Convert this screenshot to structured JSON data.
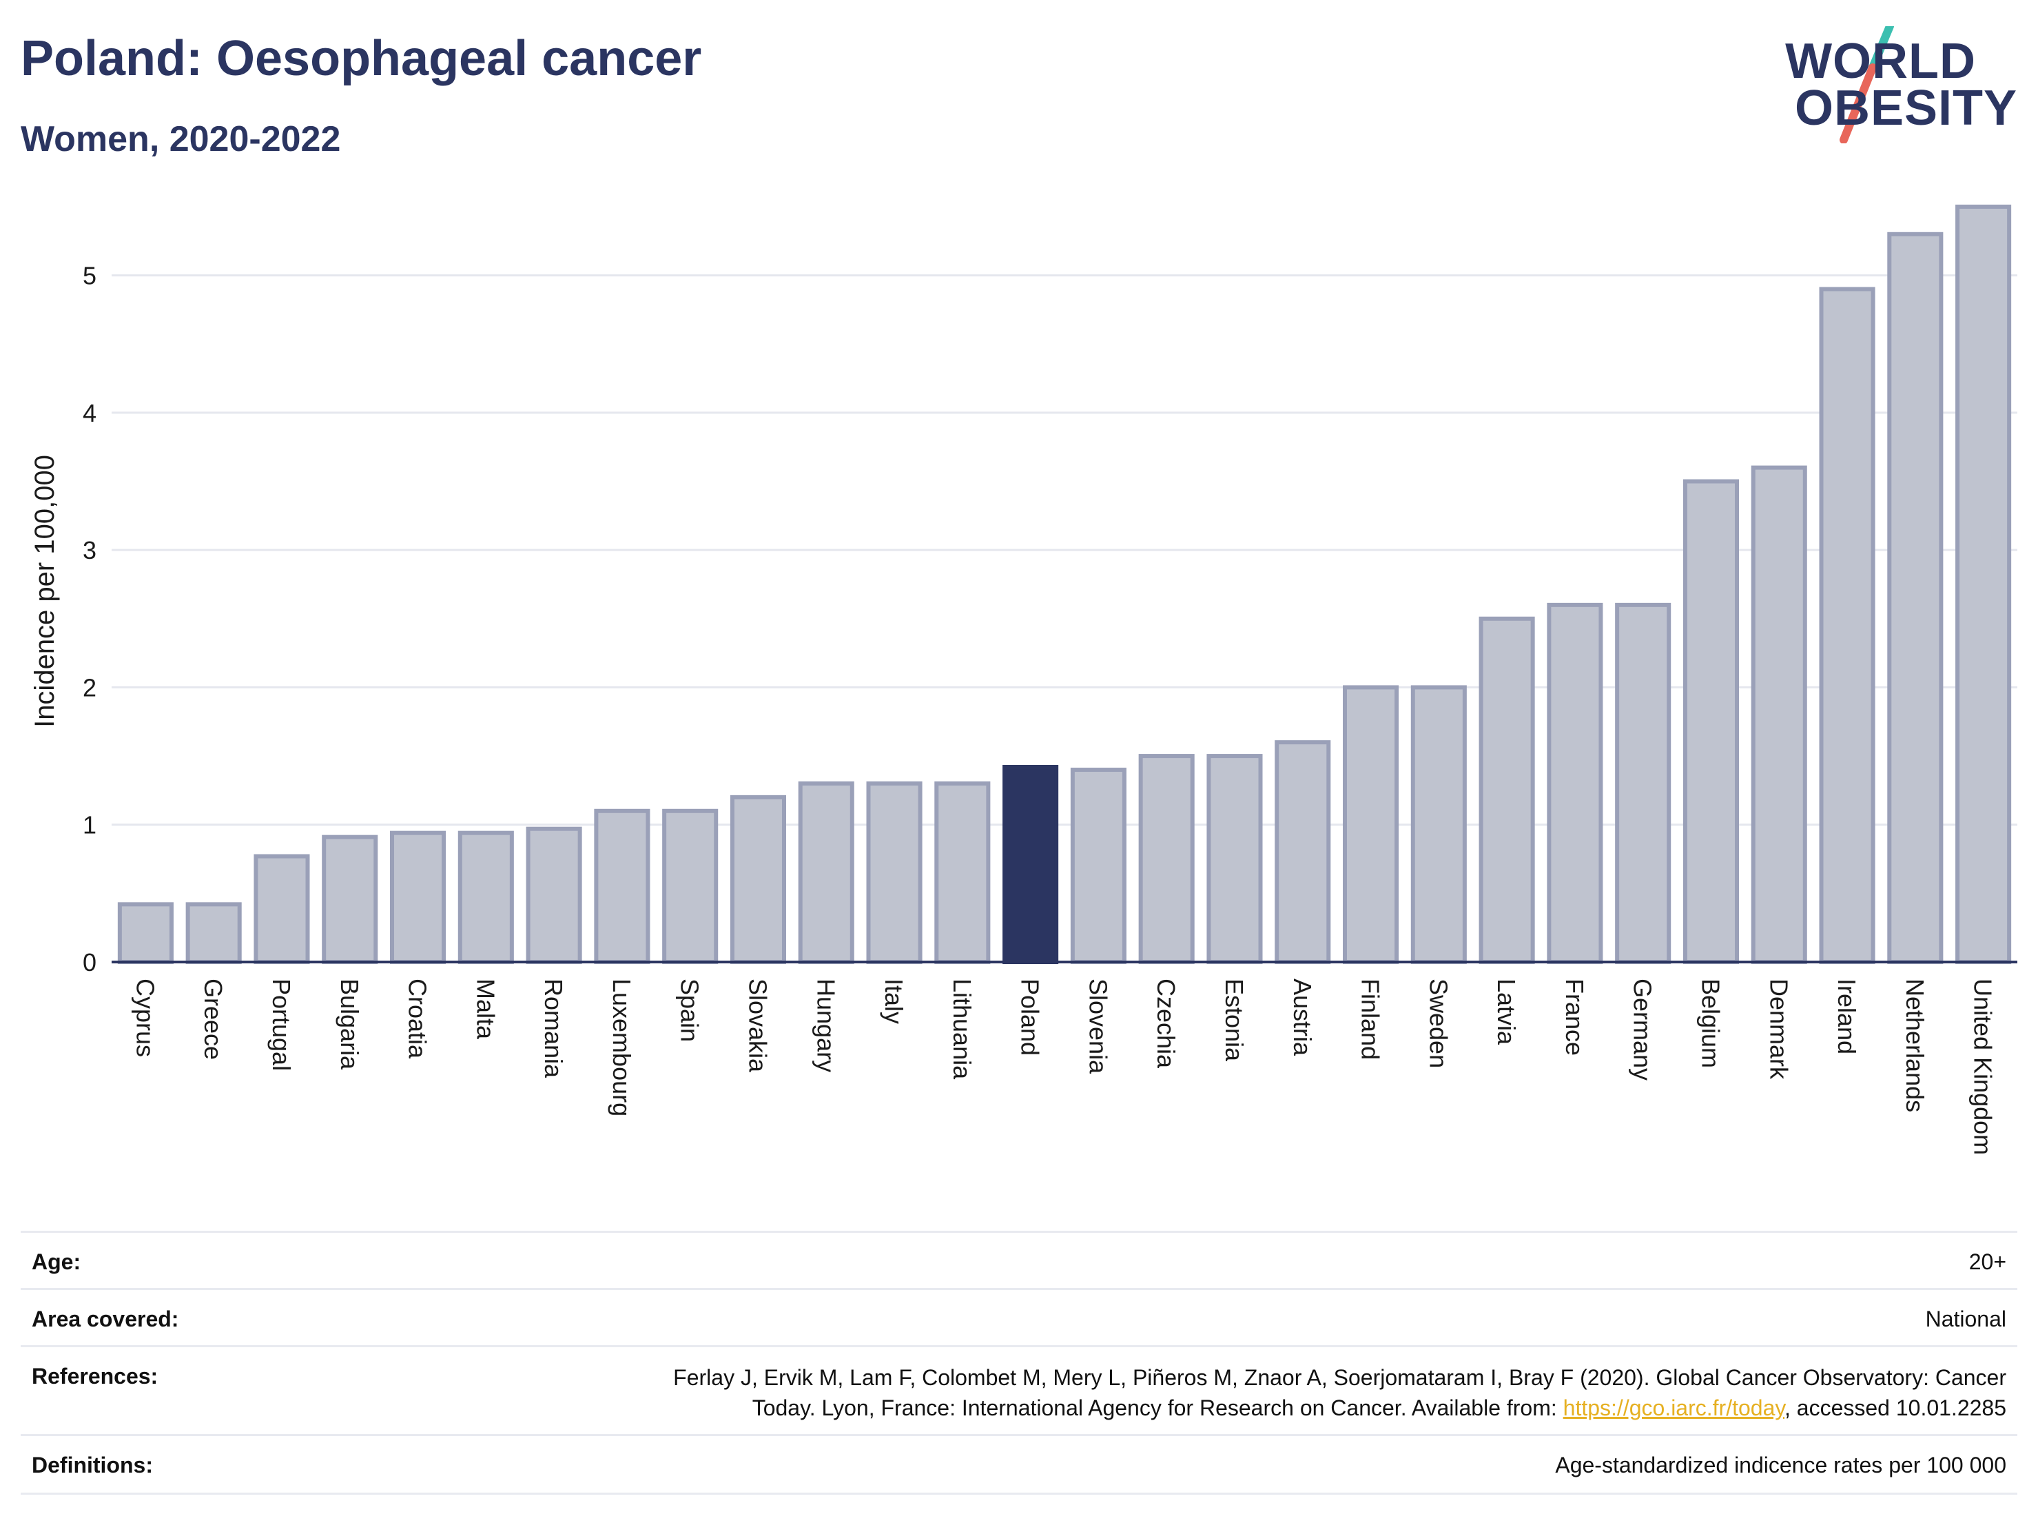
{
  "header": {
    "title": "Poland: Oesophageal cancer",
    "subtitle": "Women, 2020-2022"
  },
  "logo": {
    "line1": "WORLD",
    "line2": "OBESITY",
    "colors": {
      "text": "#2b3561",
      "slash_top": "#3bbfb0",
      "slash_bottom": "#e8665a"
    }
  },
  "chart_data": {
    "type": "bar",
    "ylabel": "Incidence per 100,000",
    "xlabel": "",
    "ylim": [
      0,
      5.6
    ],
    "yticks": [
      0,
      1,
      2,
      3,
      4,
      5
    ],
    "grid": true,
    "highlight": "Poland",
    "colors": {
      "bar": "#bfc3cf",
      "bar_edge": "#9aa0b8",
      "highlight": "#2b3561",
      "grid": "#e5e7ee",
      "axis": "#2b3561"
    },
    "categories": [
      "Cyprus",
      "Greece",
      "Portugal",
      "Bulgaria",
      "Croatia",
      "Malta",
      "Romania",
      "Luxembourg",
      "Spain",
      "Slovakia",
      "Hungary",
      "Italy",
      "Lithuania",
      "Poland",
      "Slovenia",
      "Czechia",
      "Estonia",
      "Austria",
      "Finland",
      "Sweden",
      "Latvia",
      "France",
      "Germany",
      "Belgium",
      "Denmark",
      "Ireland",
      "Netherlands",
      "United Kingdom"
    ],
    "values": [
      0.42,
      0.42,
      0.77,
      0.91,
      0.94,
      0.94,
      0.97,
      1.1,
      1.1,
      1.2,
      1.3,
      1.3,
      1.3,
      1.42,
      1.4,
      1.5,
      1.5,
      1.6,
      2.0,
      2.0,
      2.5,
      2.6,
      2.6,
      3.5,
      3.6,
      4.9,
      5.3,
      5.5
    ]
  },
  "meta": {
    "age_label": "Age:",
    "age_value": "20+",
    "area_label": "Area covered:",
    "area_value": "National",
    "references_label": "References:",
    "references_line1": "Ferlay J, Ervik M, Lam F, Colombet M, Mery L, Piñeros M, Znaor A, Soerjomataram I, Bray F (2020). Global Cancer Observatory: Cancer",
    "references_line2_pre": "Today. Lyon, France: International Agency for Research on Cancer. Available from: ",
    "references_link": "https://gco.iarc.fr/today",
    "references_line2_post": ", accessed 10.01.2285",
    "definitions_label": "Definitions:",
    "definitions_value": "Age-standardized indicence rates per 100 000"
  }
}
